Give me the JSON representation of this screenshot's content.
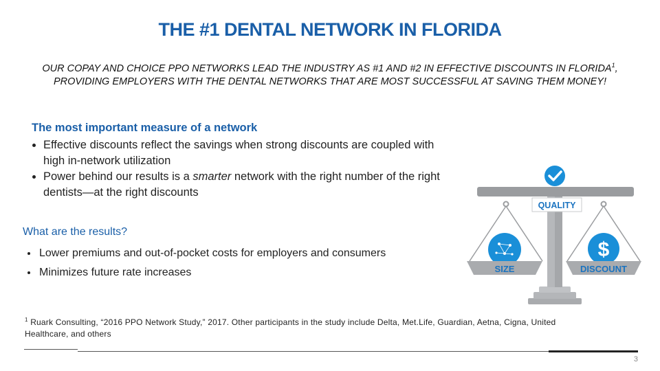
{
  "header": {
    "title": "THE #1 DENTAL NETWORK IN FLORIDA",
    "subtitle_part1": "OUR COPAY AND CHOICE PPO NETWORKS LEAD THE INDUSTRY AS #1 AND #2 IN EFFECTIVE DISCOUNTS IN FLORIDA",
    "subtitle_sup": "1",
    "subtitle_part2": ", PROVIDING EMPLOYERS WITH THE DENTAL NETWORKS THAT ARE MOST SUCCESSFUL AT SAVING THEM MONEY!"
  },
  "measure": {
    "heading": "The most important measure of a network",
    "bullet1": "Effective discounts reflect the savings when strong discounts are coupled with high in-network utilization",
    "bullet2_before": "Power behind our results is a ",
    "bullet2_italic": "smarter",
    "bullet2_after": " network with the right number of the right dentists—at the right discounts"
  },
  "results": {
    "heading": "What are the results?",
    "items": [
      "Lower premiums and out-of-pocket costs for employers and consumers",
      "Minimizes future rate increases"
    ]
  },
  "illustration": {
    "quality_label": "QUALITY",
    "size_label": "SIZE",
    "discount_label": "DISCOUNT",
    "icon": "balance-scale",
    "colors": {
      "blue": "#1a8fd8",
      "gray": "#a9abae",
      "dark_gray": "#8e9094"
    }
  },
  "footnote": {
    "marker": "1",
    "text": " Ruark Consulting, “2016 PPO Network Study,” 2017.  Other participants in the study include Delta, Met.Life, Guardian, Aetna, Cigna, United Healthcare, and others"
  },
  "page_number": "3"
}
